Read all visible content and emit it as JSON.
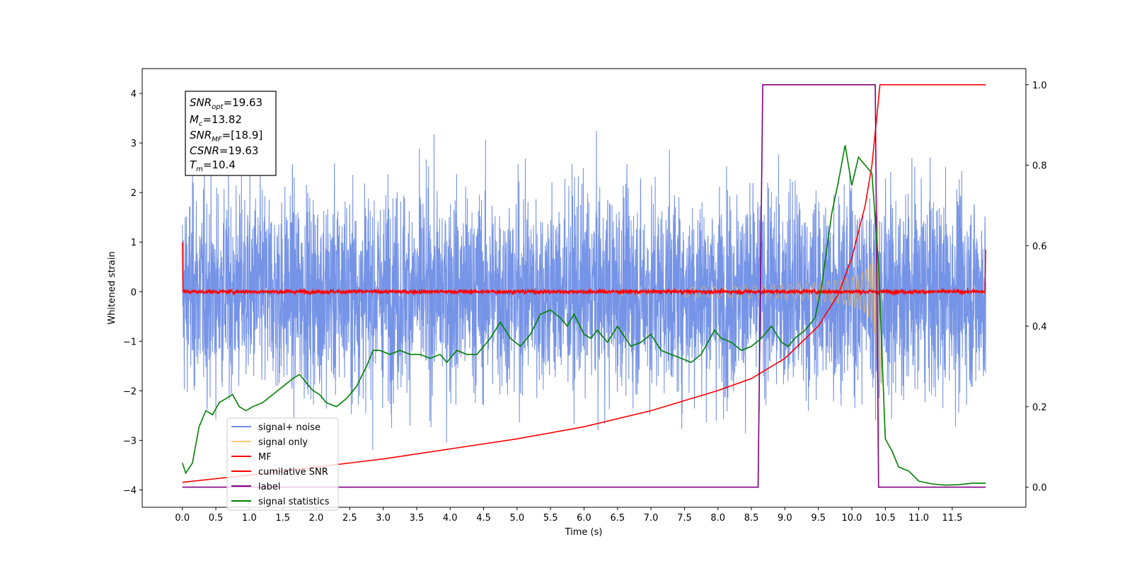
{
  "chart_data": {
    "type": "line",
    "title": "",
    "xlabel": "Time (s)",
    "ylabel": "Whitened strain",
    "xlim": [
      -0.6,
      12.6
    ],
    "ylim": [
      -4.35,
      4.5
    ],
    "y2lim": [
      -0.05,
      1.04
    ],
    "x_ticks": [
      0.0,
      0.5,
      1.0,
      1.5,
      2.0,
      2.5,
      3.0,
      3.5,
      4.0,
      4.5,
      5.0,
      5.5,
      6.0,
      6.5,
      7.0,
      7.5,
      8.0,
      8.5,
      9.0,
      9.5,
      10.0,
      10.5,
      11.0,
      11.5
    ],
    "x_tick_labels": [
      "0.0",
      "0.5",
      "1.0",
      "1.5",
      "2.0",
      "2.5",
      "3.0",
      "3.5",
      "4.0",
      "4.5",
      "5.0",
      "5.5",
      "6.0",
      "6.5",
      "7.0",
      "7.5",
      "8.0",
      "8.5",
      "9.0",
      "9.5",
      "10.0",
      "10.5",
      "11.0",
      "11.5"
    ],
    "y_ticks": [
      4,
      3,
      2,
      1,
      0,
      -1,
      -2,
      -3,
      -4
    ],
    "y_tick_labels": [
      "4",
      "3",
      "2",
      "1",
      "0",
      "−1",
      "−2",
      "−3",
      "−4"
    ],
    "y2_ticks": [
      1.0,
      0.8,
      0.6,
      0.4,
      0.2,
      0.0
    ],
    "y2_tick_labels": [
      "1.0",
      "0.8",
      "0.6",
      "0.4",
      "0.2",
      "0.0"
    ],
    "grid": false,
    "legend_placement": "lower-left",
    "series": [
      {
        "name": "signal+ noise",
        "color": "#6f8ee6",
        "axis": "left",
        "kind": "noise_band",
        "x_range": [
          0.0,
          12.0
        ],
        "typical_amplitude": 1.5,
        "peak_amplitude": 3.9
      },
      {
        "name": "signal only",
        "color": "#f5b84e",
        "axis": "left",
        "kind": "chirp",
        "x_range": [
          0.0,
          10.45
        ],
        "merger_time": 10.4,
        "peak_amplitude": 3.2
      },
      {
        "name": "MF",
        "color": "#ff0000",
        "axis": "left",
        "kind": "noise_band",
        "x_range": [
          0.0,
          12.0
        ],
        "typical_amplitude": 0.05,
        "edge_value": 1.0
      },
      {
        "name": "cumilative SNR",
        "color": "#ff0000",
        "axis": "right",
        "x": [
          0.0,
          1.0,
          2.0,
          3.0,
          4.0,
          5.0,
          6.0,
          7.0,
          8.0,
          8.5,
          9.0,
          9.5,
          9.8,
          10.0,
          10.2,
          10.3,
          10.38,
          10.42,
          11.0,
          12.0
        ],
        "values": [
          0.012,
          0.03,
          0.05,
          0.07,
          0.095,
          0.12,
          0.15,
          0.19,
          0.24,
          0.27,
          0.32,
          0.4,
          0.48,
          0.57,
          0.7,
          0.8,
          0.93,
          1.0,
          1.0,
          1.0
        ]
      },
      {
        "name": "label",
        "color": "#800080",
        "axis": "right",
        "x": [
          0.0,
          8.6,
          8.67,
          10.35,
          10.4,
          12.0
        ],
        "values": [
          0.0,
          0.0,
          1.0,
          1.0,
          0.0,
          0.0
        ]
      },
      {
        "name": "signal statistics",
        "color": "#008000",
        "axis": "right",
        "x": [
          0.0,
          0.05,
          0.15,
          0.25,
          0.35,
          0.45,
          0.55,
          0.65,
          0.75,
          0.85,
          0.95,
          1.05,
          1.2,
          1.35,
          1.5,
          1.65,
          1.75,
          1.85,
          1.95,
          2.05,
          2.15,
          2.3,
          2.45,
          2.6,
          2.75,
          2.85,
          2.95,
          3.1,
          3.25,
          3.4,
          3.55,
          3.7,
          3.85,
          3.95,
          4.1,
          4.25,
          4.4,
          4.5,
          4.6,
          4.75,
          4.9,
          5.05,
          5.2,
          5.35,
          5.5,
          5.65,
          5.75,
          5.85,
          6.0,
          6.1,
          6.2,
          6.35,
          6.5,
          6.7,
          6.85,
          7.0,
          7.15,
          7.3,
          7.45,
          7.6,
          7.75,
          7.85,
          7.95,
          8.05,
          8.2,
          8.35,
          8.5,
          8.65,
          8.8,
          8.95,
          9.05,
          9.15,
          9.3,
          9.45,
          9.55,
          9.7,
          9.8,
          9.9,
          10.0,
          10.1,
          10.2,
          10.3,
          10.4,
          10.5,
          10.6,
          10.7,
          10.85,
          11.0,
          11.2,
          11.4,
          11.6,
          11.8,
          12.0
        ],
        "values": [
          0.06,
          0.035,
          0.06,
          0.15,
          0.19,
          0.18,
          0.21,
          0.22,
          0.23,
          0.2,
          0.19,
          0.2,
          0.21,
          0.23,
          0.25,
          0.27,
          0.28,
          0.26,
          0.24,
          0.23,
          0.21,
          0.2,
          0.22,
          0.25,
          0.3,
          0.34,
          0.34,
          0.33,
          0.34,
          0.33,
          0.33,
          0.32,
          0.33,
          0.31,
          0.34,
          0.33,
          0.33,
          0.35,
          0.37,
          0.41,
          0.37,
          0.35,
          0.38,
          0.43,
          0.44,
          0.42,
          0.4,
          0.43,
          0.38,
          0.37,
          0.39,
          0.36,
          0.4,
          0.35,
          0.36,
          0.38,
          0.34,
          0.33,
          0.32,
          0.31,
          0.33,
          0.36,
          0.39,
          0.37,
          0.36,
          0.34,
          0.35,
          0.37,
          0.4,
          0.36,
          0.35,
          0.37,
          0.39,
          0.42,
          0.5,
          0.68,
          0.76,
          0.85,
          0.75,
          0.82,
          0.8,
          0.78,
          0.55,
          0.12,
          0.09,
          0.05,
          0.04,
          0.015,
          0.008,
          0.005,
          0.006,
          0.01,
          0.01
        ]
      }
    ],
    "annotation": {
      "snr_opt_label": "SNR",
      "snr_opt_sub": "opt",
      "snr_opt_value": "=19.63",
      "mc_label": "M",
      "mc_sub": "c",
      "mc_value": "=13.82",
      "snr_mf_label": "SNR",
      "snr_mf_sub": "MF",
      "snr_mf_value": "=[18.9]",
      "csnr_label": "CSNR",
      "csnr_value": "=19.63",
      "tm_label": "T",
      "tm_sub": "m",
      "tm_value": "=10.4"
    }
  }
}
